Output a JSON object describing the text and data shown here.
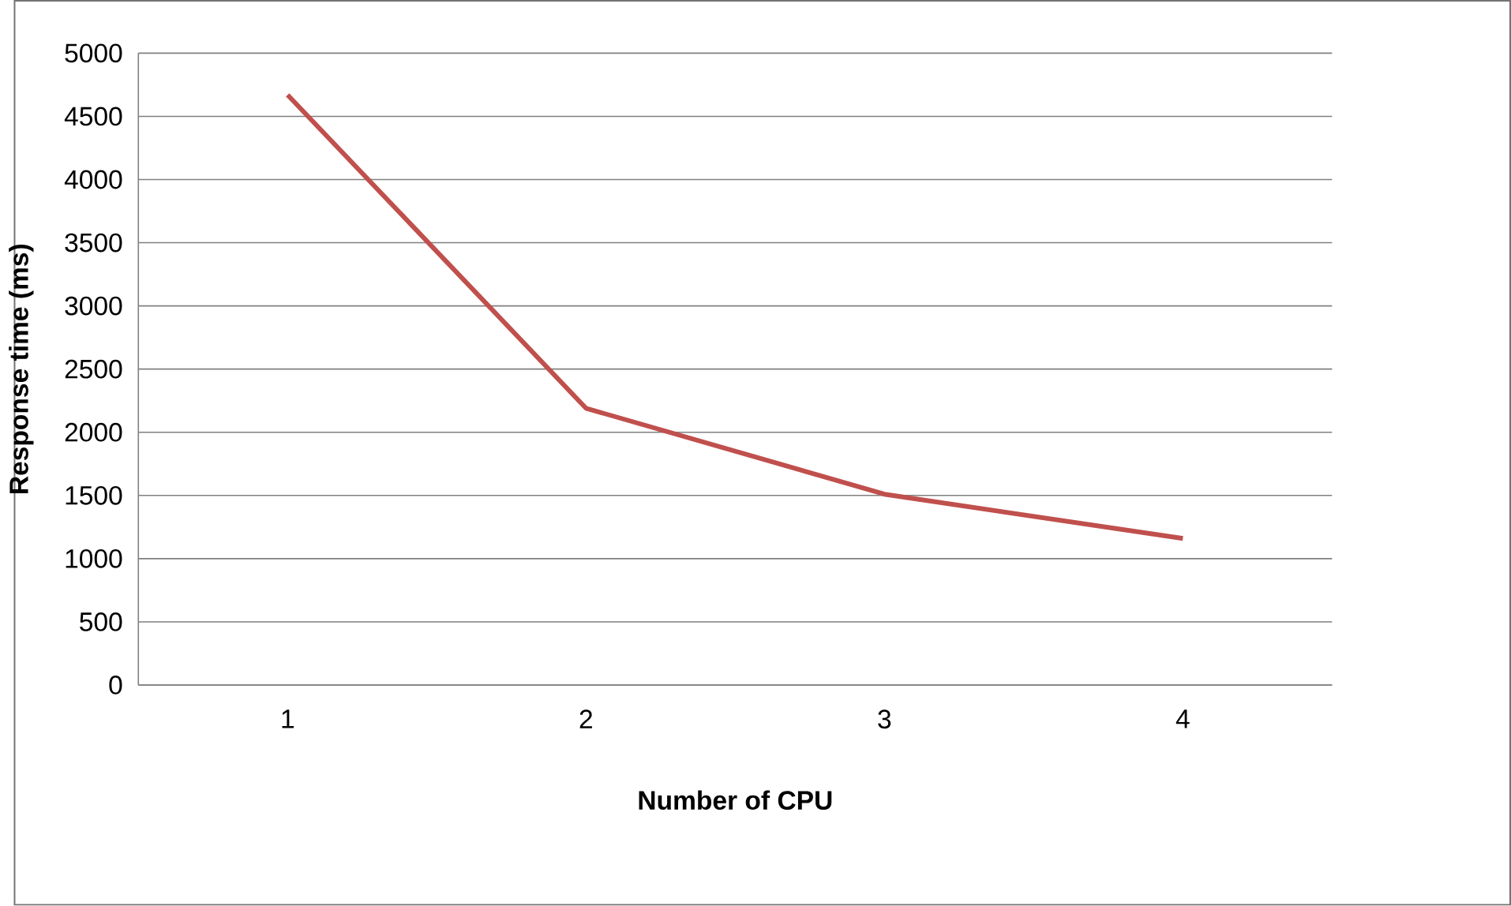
{
  "chart_data": {
    "type": "line",
    "xlabel": "Number of CPU",
    "ylabel": "Response time (ms)",
    "categories": [
      "1",
      "2",
      "3",
      "4"
    ],
    "series": [
      {
        "color": "#c0504d",
        "values": [
          4670,
          2190,
          1510,
          1160
        ]
      }
    ],
    "ylim": [
      0,
      5000
    ],
    "yticks": [
      0,
      500,
      1000,
      1500,
      2000,
      2500,
      3000,
      3500,
      4000,
      4500,
      5000
    ],
    "grid": "y"
  }
}
